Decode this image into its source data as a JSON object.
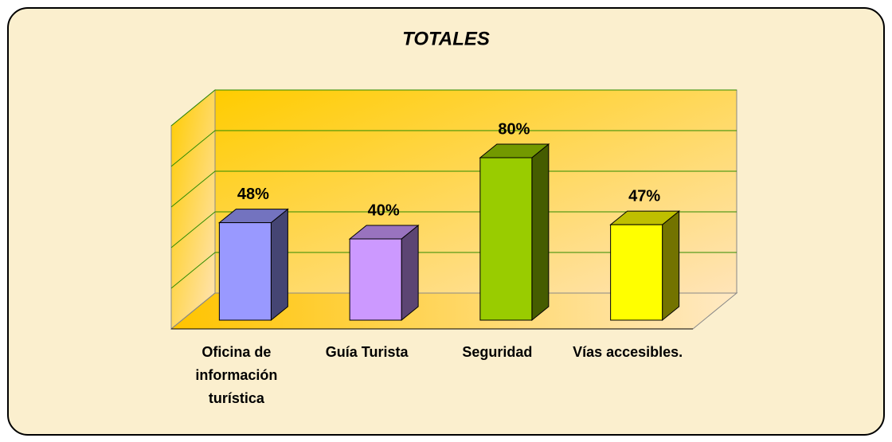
{
  "chart_data": {
    "type": "bar3d",
    "title": "TOTALES",
    "categories": [
      "Oficina de información turística",
      "Guía Turista",
      "Seguridad",
      "Vías accesibles."
    ],
    "values": [
      48,
      40,
      80,
      47
    ],
    "value_labels": [
      "48%",
      "40%",
      "80%",
      "47%"
    ],
    "colors": [
      "#9999ff",
      "#cc99ff",
      "#99cc00",
      "#ffff00"
    ],
    "ylim": [
      0,
      100
    ],
    "yticks": [
      0,
      20,
      40,
      60,
      80,
      100
    ],
    "grid": true
  }
}
